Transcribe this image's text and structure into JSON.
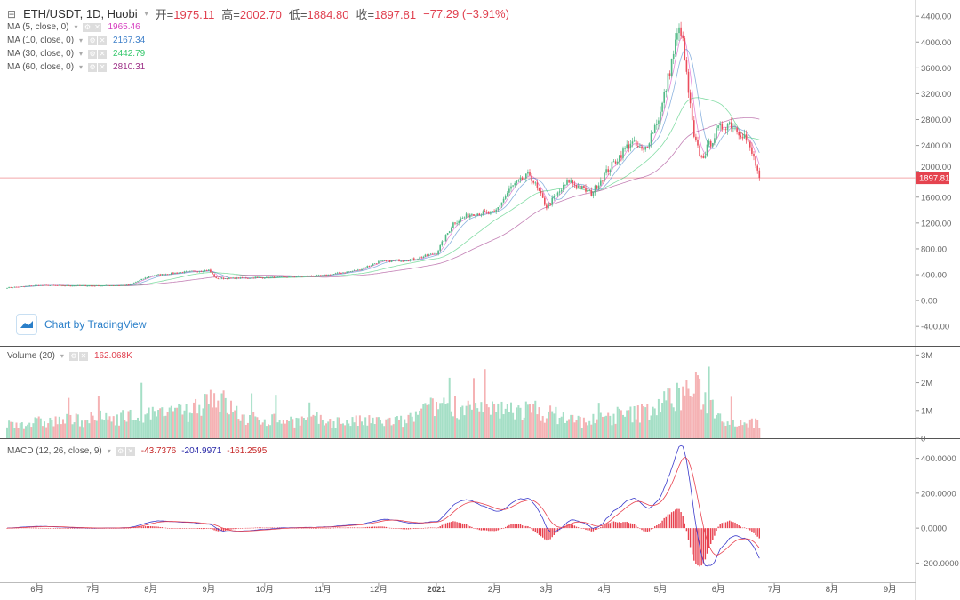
{
  "header": {
    "symbol": "ETH/USDT, 1D, Huobi",
    "open_label": "开=",
    "open": "1975.11",
    "high_label": "高=",
    "high": "2002.70",
    "low_label": "低=",
    "low": "1884.80",
    "close_label": "收=",
    "close": "1897.81",
    "change": "−77.29 (−3.91%)"
  },
  "indicators": [
    {
      "label": "MA (5, close, 0)",
      "value": "1965.46",
      "color": "#d63cbf"
    },
    {
      "label": "MA (10, close, 0)",
      "value": "2167.34",
      "color": "#3d7fc9"
    },
    {
      "label": "MA (30, close, 0)",
      "value": "2442.79",
      "color": "#34c76b"
    },
    {
      "label": "MA (60, close, 0)",
      "value": "2810.31",
      "color": "#9c2f86"
    }
  ],
  "volume_legend": {
    "label": "Volume (20)",
    "value": "162.068K"
  },
  "macd_legend": {
    "label": "MACD (12, 26, close, 9)",
    "hist": "-43.7376",
    "macd": "-204.9971",
    "signal": "-161.2595"
  },
  "watermark": "Chart by TradingView",
  "last_price_tag": "1897.81",
  "colors": {
    "up": "#53b987",
    "down": "#eb4d5c",
    "up_vol": "#a5dfc6",
    "down_vol": "#f5b2b4",
    "macd": "#3a3acb",
    "signal": "#e8424f",
    "hist": "#e8424f"
  },
  "chart_data": {
    "type": "candlestick",
    "title": "ETH/USDT, 1D, Huobi",
    "start_date": "2020-05-16",
    "end_date": "2021-06-23",
    "price_axis": {
      "ticks": [
        "4400.00",
        "4000.00",
        "3600.00",
        "3200.00",
        "2800.00",
        "2400.00",
        "2000.00",
        "1600.00",
        "1200.00",
        "800.00",
        "400.00",
        "0.00",
        "-400.00"
      ],
      "range": [
        -700,
        4650
      ]
    },
    "volume_axis": {
      "ticks": [
        "3M",
        "2M",
        "1M",
        "0"
      ],
      "range": [
        0,
        3.3
      ]
    },
    "macd_axis": {
      "ticks": [
        "400.0000",
        "200.0000",
        "0.0000",
        "-200.0000"
      ],
      "range": [
        -310,
        510
      ]
    },
    "time_axis": {
      "labels": [
        {
          "label": "6月",
          "date": "2020-06-01"
        },
        {
          "label": "7月",
          "date": "2020-07-01"
        },
        {
          "label": "8月",
          "date": "2020-08-01"
        },
        {
          "label": "9月",
          "date": "2020-09-01"
        },
        {
          "label": "10月",
          "date": "2020-10-01"
        },
        {
          "label": "11月",
          "date": "2020-11-01"
        },
        {
          "label": "12月",
          "date": "2020-12-01"
        },
        {
          "label": "2021",
          "date": "2021-01-01"
        },
        {
          "label": "2月",
          "date": "2021-02-01"
        },
        {
          "label": "3月",
          "date": "2021-03-01"
        },
        {
          "label": "4月",
          "date": "2021-04-01"
        },
        {
          "label": "5月",
          "date": "2021-05-01"
        },
        {
          "label": "6月",
          "date": "2021-06-01"
        },
        {
          "label": "7月",
          "date": "2021-07-01"
        },
        {
          "label": "8月",
          "date": "2021-08-01"
        },
        {
          "label": "9月",
          "date": "2021-09-01"
        }
      ]
    },
    "close_keypoints": [
      [
        "2020-05-16",
        200
      ],
      [
        "2020-06-01",
        235
      ],
      [
        "2020-07-01",
        228
      ],
      [
        "2020-07-20",
        240
      ],
      [
        "2020-08-01",
        385
      ],
      [
        "2020-08-15",
        430
      ],
      [
        "2020-09-01",
        470
      ],
      [
        "2020-09-05",
        340
      ],
      [
        "2020-10-01",
        355
      ],
      [
        "2020-11-01",
        385
      ],
      [
        "2020-11-20",
        470
      ],
      [
        "2020-12-01",
        600
      ],
      [
        "2020-12-20",
        640
      ],
      [
        "2021-01-01",
        735
      ],
      [
        "2021-01-10",
        1200
      ],
      [
        "2021-01-20",
        1350
      ],
      [
        "2021-02-01",
        1350
      ],
      [
        "2021-02-10",
        1750
      ],
      [
        "2021-02-20",
        1950
      ],
      [
        "2021-03-01",
        1450
      ],
      [
        "2021-03-13",
        1850
      ],
      [
        "2021-03-25",
        1650
      ],
      [
        "2021-04-01",
        1950
      ],
      [
        "2021-04-15",
        2450
      ],
      [
        "2021-04-22",
        2300
      ],
      [
        "2021-05-01",
        2900
      ],
      [
        "2021-05-10",
        4100
      ],
      [
        "2021-05-12",
        4200
      ],
      [
        "2021-05-19",
        2500
      ],
      [
        "2021-05-23",
        2200
      ],
      [
        "2021-06-01",
        2650
      ],
      [
        "2021-06-07",
        2750
      ],
      [
        "2021-06-15",
        2550
      ],
      [
        "2021-06-20",
        2200
      ],
      [
        "2021-06-23",
        1898
      ]
    ],
    "volume_keypoints_millions": [
      [
        "2020-05-16",
        0.5
      ],
      [
        "2020-07-25",
        0.8
      ],
      [
        "2020-08-20",
        0.9
      ],
      [
        "2020-09-03",
        1.6
      ],
      [
        "2020-09-20",
        0.7
      ],
      [
        "2020-11-01",
        0.6
      ],
      [
        "2020-12-15",
        0.6
      ],
      [
        "2021-01-05",
        1.3
      ],
      [
        "2021-01-20",
        1.0
      ],
      [
        "2021-02-23",
        1.0
      ],
      [
        "2021-03-20",
        0.6
      ],
      [
        "2021-04-20",
        0.9
      ],
      [
        "2021-05-19",
        1.8
      ],
      [
        "2021-06-05",
        0.7
      ],
      [
        "2021-06-23",
        0.5
      ]
    ]
  }
}
